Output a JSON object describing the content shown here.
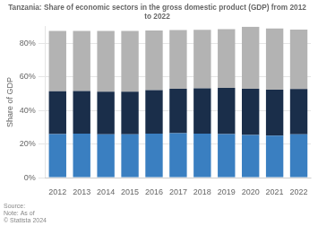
{
  "chart_data": {
    "type": "bar",
    "title": "Tanzania: Share of economic sectors in the gross domestic product (GDP) from 2012\nto 2022",
    "ylabel": "Share of GDP",
    "annotations": [
      "Source:\nNote: As of\n© Statista 2024"
    ],
    "categories": [
      "2012",
      "2013",
      "2014",
      "2015",
      "2016",
      "2017",
      "2018",
      "2019",
      "2020",
      "2021",
      "2022"
    ],
    "series": [
      {
        "color": "#3a7fc1",
        "values": [
          26.0,
          26.2,
          25.8,
          25.8,
          26.2,
          26.5,
          26.2,
          26.0,
          25.5,
          25.0,
          25.8
        ]
      },
      {
        "color": "#1a2e4a",
        "values": [
          25.5,
          25.5,
          25.5,
          25.5,
          26.0,
          26.5,
          27.0,
          27.5,
          27.5,
          27.5,
          27.0
        ]
      },
      {
        "color": "#b3b3b3",
        "values": [
          36.0,
          35.8,
          36.2,
          36.2,
          35.5,
          35.0,
          35.0,
          35.0,
          37.0,
          36.5,
          35.5
        ]
      }
    ],
    "stacked": true,
    "ylim": [
      0,
      90
    ],
    "yticks": [
      {
        "value": 0,
        "label": "0%"
      },
      {
        "value": 20,
        "label": "20%"
      },
      {
        "value": 40,
        "label": "40%"
      },
      {
        "value": 60,
        "label": "60%"
      },
      {
        "value": 80,
        "label": "80%"
      }
    ],
    "grid": true
  }
}
